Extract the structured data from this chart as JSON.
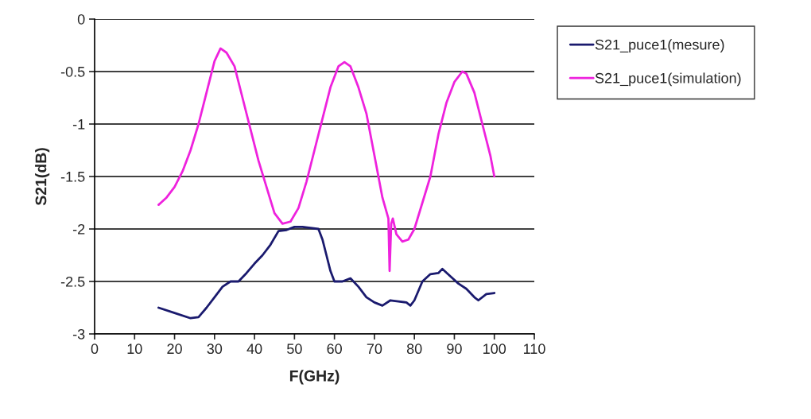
{
  "chart_data": {
    "type": "line",
    "xlabel": "F(GHz)",
    "ylabel": "S21(dB)",
    "xlim": [
      0,
      110
    ],
    "xticks": [
      0,
      10,
      20,
      30,
      40,
      50,
      60,
      70,
      80,
      90,
      100,
      110
    ],
    "ylim": [
      -3,
      0
    ],
    "yticks": [
      -3,
      -2.5,
      -2,
      -1.5,
      -1,
      -0.5,
      0
    ],
    "grid": "y",
    "legend": "top right",
    "line_style": "solid",
    "marker": "none",
    "series": [
      {
        "name": "S21_puce1(mesure)",
        "color": "#1a1a6e",
        "x": [
          16,
          20,
          24,
          26,
          28,
          30,
          32,
          34,
          36,
          38,
          40,
          42,
          44,
          46,
          48,
          50,
          52,
          54,
          56,
          57,
          58,
          59,
          60,
          62,
          64,
          66,
          68,
          70,
          72,
          74,
          76,
          78,
          79,
          80,
          82,
          84,
          86,
          87,
          89,
          91,
          93,
          95,
          96,
          98,
          100
        ],
        "values": [
          -2.75,
          -2.8,
          -2.85,
          -2.84,
          -2.75,
          -2.65,
          -2.55,
          -2.5,
          -2.5,
          -2.42,
          -2.33,
          -2.25,
          -2.15,
          -2.02,
          -2.01,
          -1.98,
          -1.98,
          -1.99,
          -2.0,
          -2.1,
          -2.25,
          -2.4,
          -2.5,
          -2.5,
          -2.47,
          -2.55,
          -2.65,
          -2.7,
          -2.73,
          -2.68,
          -2.69,
          -2.7,
          -2.73,
          -2.68,
          -2.5,
          -2.43,
          -2.42,
          -2.38,
          -2.45,
          -2.52,
          -2.57,
          -2.65,
          -2.68,
          -2.62,
          -2.61
        ]
      },
      {
        "name": "S21_puce1(simulation)",
        "color": "#ee22dd",
        "x": [
          16,
          18,
          20,
          22,
          24,
          26,
          28,
          30,
          31.5,
          33,
          35,
          37,
          39,
          41,
          43,
          45,
          47,
          49,
          51,
          53,
          55,
          57,
          59,
          61,
          62.5,
          64,
          66,
          68,
          70,
          72,
          73.5,
          73.8,
          74.2,
          74.6,
          75.5,
          77,
          78.5,
          80,
          82,
          84,
          86,
          88,
          90,
          92,
          93,
          95,
          97,
          99,
          100
        ],
        "values": [
          -1.77,
          -1.7,
          -1.6,
          -1.45,
          -1.25,
          -1.0,
          -0.7,
          -0.4,
          -0.28,
          -0.32,
          -0.45,
          -0.75,
          -1.05,
          -1.35,
          -1.6,
          -1.85,
          -1.95,
          -1.93,
          -1.8,
          -1.55,
          -1.25,
          -0.95,
          -0.65,
          -0.45,
          -0.41,
          -0.45,
          -0.65,
          -0.9,
          -1.3,
          -1.7,
          -1.9,
          -2.4,
          -1.95,
          -1.9,
          -2.05,
          -2.12,
          -2.1,
          -2.0,
          -1.75,
          -1.5,
          -1.1,
          -0.8,
          -0.6,
          -0.5,
          -0.52,
          -0.7,
          -1.0,
          -1.3,
          -1.5
        ]
      }
    ]
  }
}
